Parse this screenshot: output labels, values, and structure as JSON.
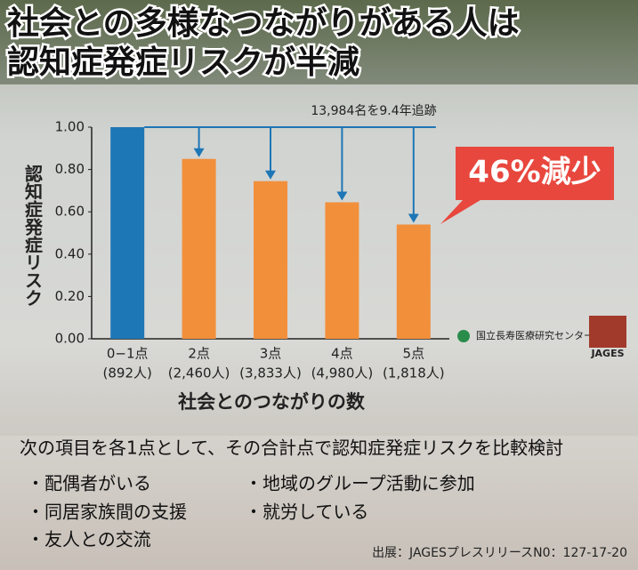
{
  "chart_data": {
    "type": "bar",
    "title": [
      "社会との多様なつながりがある人は",
      "認知症発症リスクが半減"
    ],
    "annotation": "13,984名を9.4年追跡",
    "callout": "46%減少",
    "y_label": "認知症発症リスク",
    "x_label": "社会とのつながりの数",
    "categories": [
      "0−1点",
      "2点",
      "3点",
      "4点",
      "5点"
    ],
    "category_counts": [
      "(892人)",
      "(2,460人)",
      "(3,833人)",
      "(4,980人)",
      "(1,818人)"
    ],
    "values": [
      1.0,
      0.85,
      0.745,
      0.645,
      0.54
    ],
    "colors": [
      "#1d76b6",
      "#f28f3b",
      "#f28f3b",
      "#f28f3b",
      "#f28f3b"
    ],
    "ylim": [
      0,
      1.0
    ],
    "yticks": [
      {
        "value": 0,
        "label": "0.00"
      },
      {
        "value": 0.2,
        "label": "0.20"
      },
      {
        "value": 0.4,
        "label": "0.40"
      },
      {
        "value": 0.6,
        "label": "0.60"
      },
      {
        "value": 0.8,
        "label": "0.80"
      },
      {
        "value": 1.0,
        "label": "1.00"
      }
    ],
    "logos": [
      "国立長寿医療研究センター",
      "JAGES"
    ]
  },
  "notes": {
    "intro": "次の項目を各1点として、その合計点で認知症発症リスクを比較検討",
    "items": [
      "・配偶者がいる",
      "・同居家族間の支援",
      "・友人との交流",
      "・地域のグループ活動に参加",
      "・就労している"
    ],
    "source": "出展：JAGESプレスリリースN0：127-17-20"
  }
}
